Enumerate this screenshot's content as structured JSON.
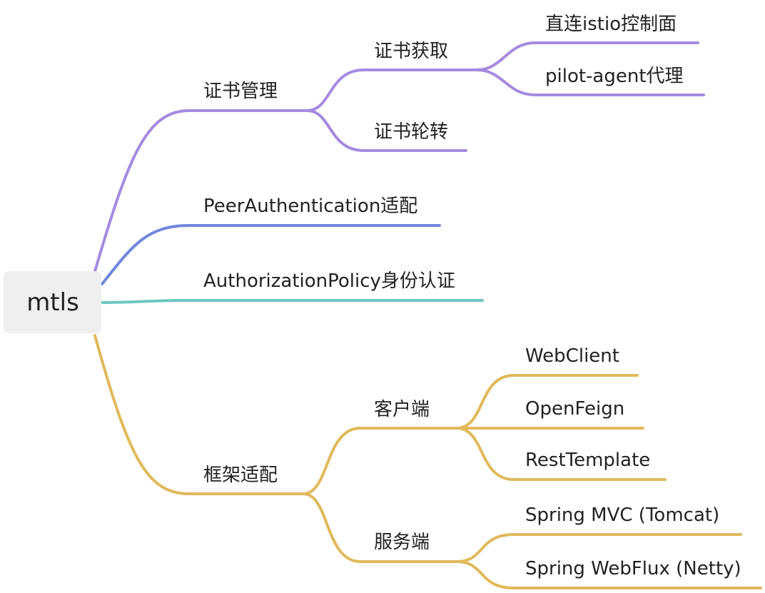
{
  "colors": {
    "root_bg": "#eef0ef",
    "purple": "#a68ae0",
    "blue": "#6f86dc",
    "teal": "#6fc6c0",
    "gold": "#e0b95a"
  },
  "root": {
    "label": "mtls"
  },
  "nodes": {
    "cert_mgmt": "证书管理",
    "cert_fetch": "证书获取",
    "direct_istio": "直连istio控制面",
    "pilot_agent": "pilot-agent代理",
    "cert_rotate": "证书轮转",
    "peer_auth": "PeerAuthentication适配",
    "authz_policy": "AuthorizationPolicy身份认证",
    "framework": "框架适配",
    "client": "客户端",
    "webclient": "WebClient",
    "openfeign": "OpenFeign",
    "resttemplate": "RestTemplate",
    "server": "服务端",
    "spring_mvc": "Spring MVC (Tomcat)",
    "spring_webflux": "Spring WebFlux (Netty)"
  }
}
